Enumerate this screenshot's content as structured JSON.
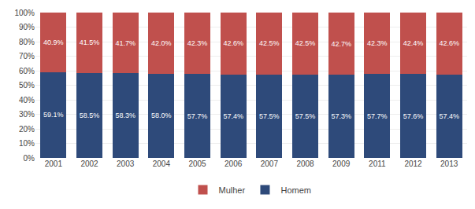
{
  "chart_data": {
    "type": "bar",
    "stacked": true,
    "categories": [
      "2001",
      "2002",
      "2003",
      "2004",
      "2005",
      "2006",
      "2007",
      "2008",
      "2009",
      "2011",
      "2012",
      "2013"
    ],
    "series": [
      {
        "name": "Homem",
        "color": "#2E4A7A",
        "values": [
          59.1,
          58.5,
          58.3,
          58.0,
          57.7,
          57.4,
          57.5,
          57.5,
          57.3,
          57.7,
          57.6,
          57.4
        ],
        "value_labels": [
          "59.1%",
          "58.5%",
          "58.3%",
          "58.0%",
          "57.7%",
          "57.4%",
          "57.5%",
          "57.5%",
          "57.3%",
          "57.7%",
          "57.6%",
          "57.4%"
        ]
      },
      {
        "name": "Mulher",
        "color": "#C0504D",
        "values": [
          40.9,
          41.5,
          41.7,
          42.0,
          42.3,
          42.6,
          42.5,
          42.5,
          42.7,
          42.3,
          42.4,
          42.6
        ],
        "value_labels": [
          "40.9%",
          "41.5%",
          "41.7%",
          "42.0%",
          "42.3%",
          "42.6%",
          "42.5%",
          "42.5%",
          "42.7%",
          "42.3%",
          "42.4%",
          "42.6%"
        ]
      }
    ],
    "ylim": [
      0,
      100
    ],
    "yticks": [
      {
        "value": 0,
        "label": "0%"
      },
      {
        "value": 10,
        "label": "10%"
      },
      {
        "value": 20,
        "label": "20%"
      },
      {
        "value": 30,
        "label": "30%"
      },
      {
        "value": 40,
        "label": "40%"
      },
      {
        "value": 50,
        "label": "50%"
      },
      {
        "value": 60,
        "label": "60%"
      },
      {
        "value": 70,
        "label": "70%"
      },
      {
        "value": 80,
        "label": "80%"
      },
      {
        "value": 90,
        "label": "90%"
      },
      {
        "value": 100,
        "label": "100%"
      }
    ],
    "grid": true,
    "legend": "bottom",
    "data_labels": true
  }
}
